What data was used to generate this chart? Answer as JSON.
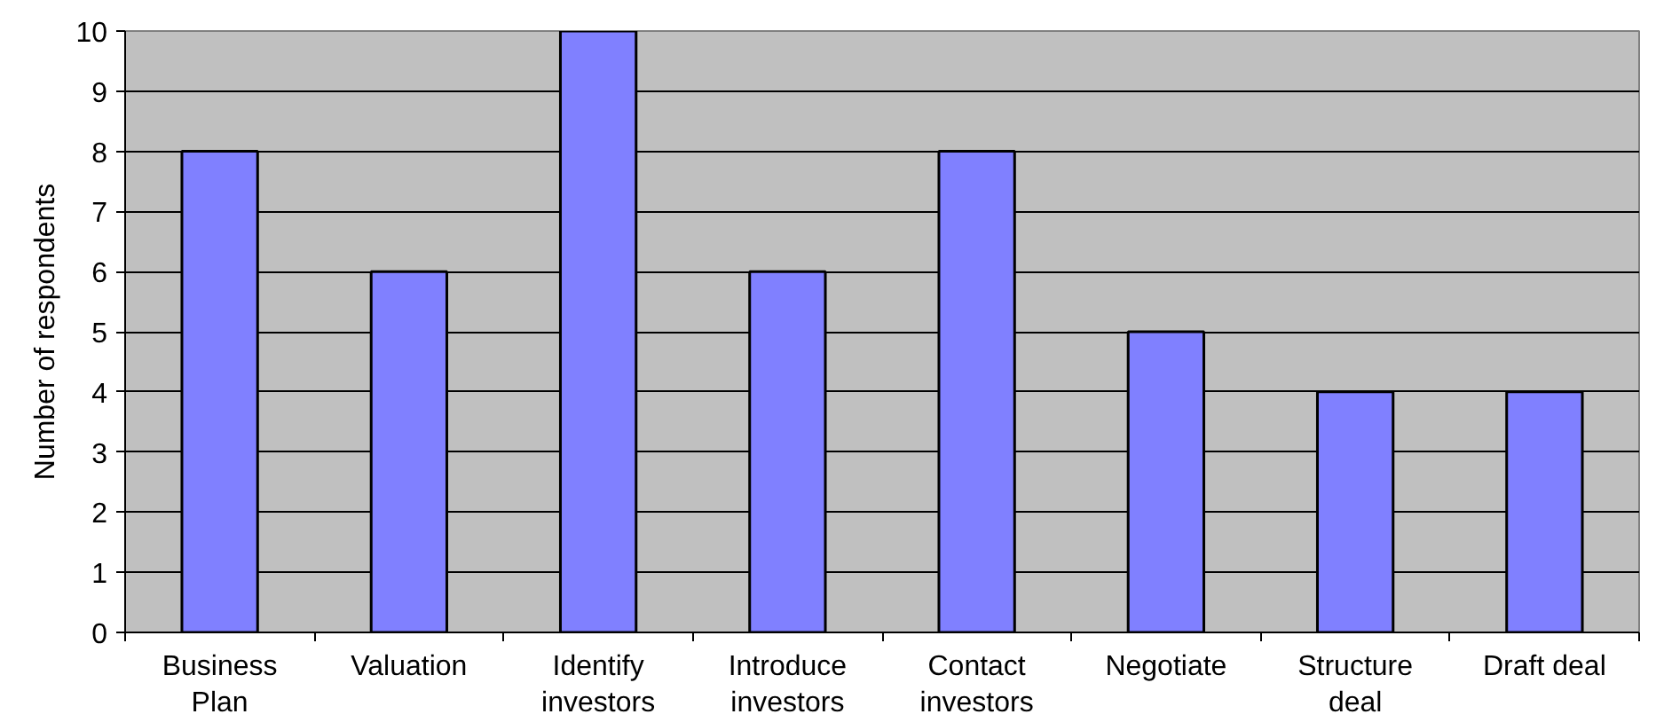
{
  "chart_data": {
    "type": "bar",
    "ylabel": "Number of respondents",
    "categories": [
      "Business Plan",
      "Valuation",
      "Identify investors",
      "Introduce investors",
      "Contact investors",
      "Negotiate",
      "Structure deal",
      "Draft deal"
    ],
    "values": [
      8,
      6,
      10,
      6,
      8,
      5,
      4,
      4
    ],
    "color": "#8080ff",
    "ylim": [
      0,
      10
    ],
    "yticks": [
      0,
      1,
      2,
      3,
      4,
      5,
      6,
      7,
      8,
      9,
      10
    ],
    "grid": "y"
  }
}
